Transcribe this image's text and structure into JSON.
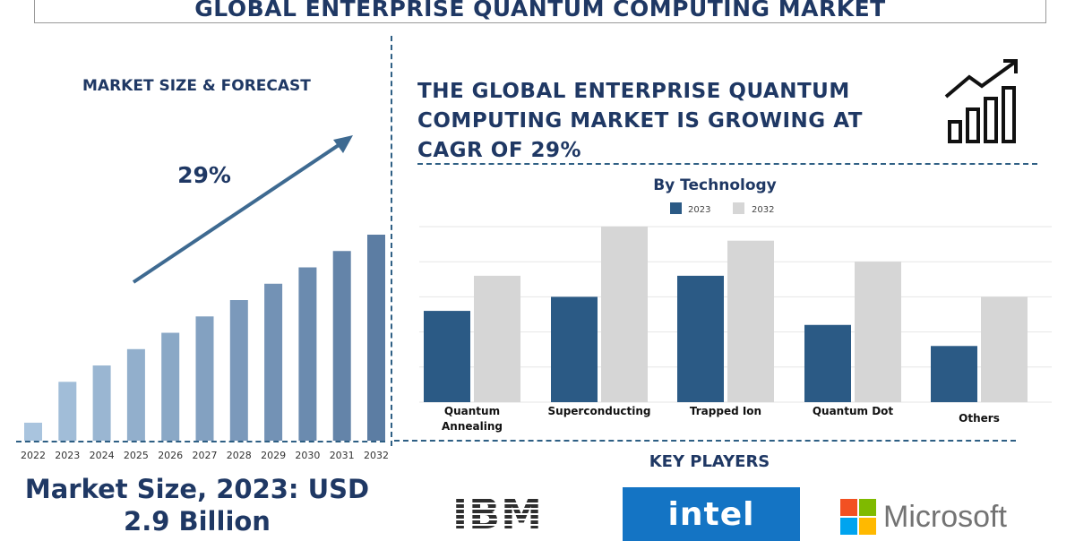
{
  "title": "GLOBAL ENTERPRISE QUANTUM COMPUTING MARKET",
  "left_panel": {
    "subtitle": "MARKET SIZE & FORECAST",
    "market_size_line1": "Market Size, 2023: USD",
    "market_size_line2": "2.9 Billion"
  },
  "headline": "THE GLOBAL ENTERPRISE QUANTUM COMPUTING MARKET IS GROWING AT CAGR OF 29%",
  "growth_icon": "bar-chart-growth-icon",
  "key_players": {
    "heading": "KEY PLAYERS",
    "logos": [
      {
        "name": "IBM",
        "icon": "ibm-logo"
      },
      {
        "name": "intel",
        "icon": "intel-logo",
        "color": "#1474c4"
      },
      {
        "name": "Microsoft",
        "icon": "microsoft-logo",
        "colors": [
          "#f25022",
          "#7fba00",
          "#00a4ef",
          "#ffb900"
        ]
      }
    ]
  },
  "colors": {
    "navy": "#1f3864",
    "bar_2023": "#2b5a85",
    "bar_2032": "#d6d6d6",
    "forecast_light": "#a9c4de",
    "forecast_dark": "#6e8fb3"
  },
  "chart_data": [
    {
      "type": "bar",
      "title": "",
      "categories": [
        "2022",
        "2023",
        "2024",
        "2025",
        "2026",
        "2027",
        "2028",
        "2029",
        "2030",
        "2031",
        "2032"
      ],
      "values": [
        1.1,
        3.6,
        4.6,
        5.6,
        6.6,
        7.6,
        8.6,
        9.6,
        10.6,
        11.6,
        12.6
      ],
      "ylim": [
        0,
        14
      ],
      "annotation": "29%",
      "grid": false
    },
    {
      "type": "bar",
      "title": "By Technology",
      "categories": [
        "Quantum Annealing",
        "Superconducting",
        "Trapped Ion",
        "Quantum Dot",
        "Others"
      ],
      "series": [
        {
          "name": "2023",
          "values": [
            2.6,
            3.0,
            3.6,
            2.2,
            1.6
          ]
        },
        {
          "name": "2032",
          "values": [
            3.6,
            5.0,
            4.6,
            4.0,
            3.0
          ]
        }
      ],
      "ylim": [
        0,
        5
      ],
      "legend": "top",
      "grid": true
    }
  ]
}
